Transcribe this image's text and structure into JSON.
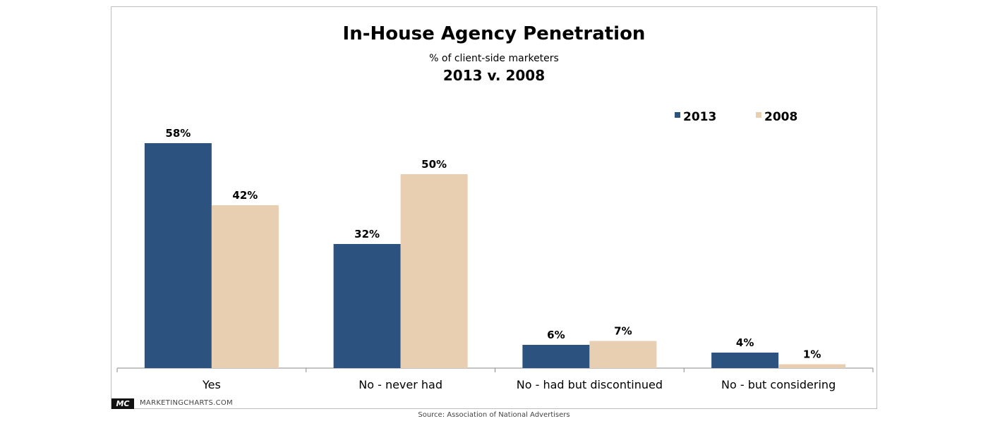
{
  "chart_data": {
    "type": "bar",
    "title": "In-House Agency Penetration",
    "subtitle": "% of client-side marketers",
    "subtitle2": "2013 v. 2008",
    "categories": [
      "Yes",
      "No - never had",
      "No - had but discontinued",
      "No - but considering"
    ],
    "series": [
      {
        "name": "2013",
        "values": [
          58,
          32,
          6,
          4
        ],
        "labels": [
          "58%",
          "32%",
          "6%",
          "4%"
        ],
        "color": "#2c5380"
      },
      {
        "name": "2008",
        "values": [
          42,
          50,
          7,
          1
        ],
        "labels": [
          "42%",
          "50%",
          "7%",
          "1%"
        ],
        "color": "#e8cfb2"
      }
    ],
    "ylim": [
      0,
      60
    ],
    "grid": false,
    "legend_position": "top-right"
  },
  "branding": {
    "logo_text": "MC",
    "site": "MARKETINGCHARTS.COM"
  },
  "source": "Source: Association of National Advertisers"
}
